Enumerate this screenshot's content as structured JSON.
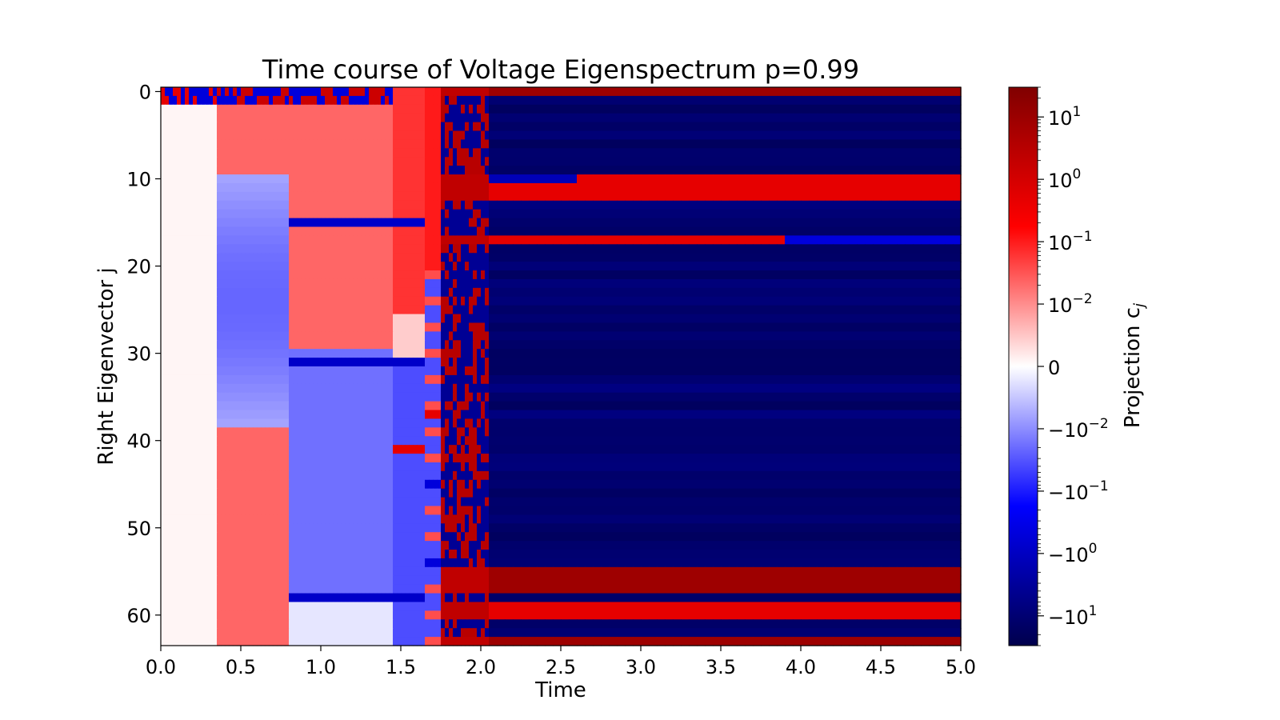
{
  "chart_data": {
    "type": "heatmap",
    "title": "Time course of Voltage Eigenspectrum p=0.99",
    "xlabel": "Time",
    "ylabel": "Right Eigenvector j",
    "xlim": [
      0.0,
      5.0
    ],
    "ylim": [
      63.5,
      -0.5
    ],
    "x_ticks": [
      "0.0",
      "0.5",
      "1.0",
      "1.5",
      "2.0",
      "2.5",
      "3.0",
      "3.5",
      "4.0",
      "4.5",
      "5.0"
    ],
    "y_ticks": [
      "0",
      "10",
      "20",
      "30",
      "40",
      "50",
      "60"
    ],
    "colormap": "seismic",
    "colors": {
      "neg_max": "#00004c",
      "neg_mid": "#0000ff",
      "zero": "#ffffff",
      "pos_mid": "#ff0000",
      "pos_max": "#800000"
    },
    "colorbar": {
      "label": "Projection c",
      "label_subscript": "j",
      "scale": "symlog",
      "range": [
        -30,
        30
      ],
      "ticks": [
        {
          "base": "10",
          "exp": "1",
          "value": 10
        },
        {
          "base": "10",
          "exp": "0",
          "value": 1
        },
        {
          "base": "10",
          "exp": "−1",
          "value": 0.1
        },
        {
          "base": "10",
          "exp": "−2",
          "value": 0.01
        },
        {
          "base": "0",
          "exp": "",
          "value": 0
        },
        {
          "base": "−10",
          "exp": "−2",
          "value": -0.01
        },
        {
          "base": "−10",
          "exp": "−1",
          "value": -0.1
        },
        {
          "base": "−10",
          "exp": "0",
          "value": -1
        },
        {
          "base": "−10",
          "exp": "1",
          "value": -10
        }
      ]
    },
    "phases": [
      {
        "t0": 0.0,
        "t1": 0.34,
        "note": "near zero, slightly positive"
      },
      {
        "t0": 0.34,
        "t1": 0.79,
        "note": "positive near 0 and ~40-64, negative ~10-37"
      },
      {
        "t0": 0.79,
        "t1": 1.46,
        "note": "positive 2-30, negative 31-57, near zero 58-63"
      },
      {
        "t0": 1.46,
        "t1": 1.65,
        "note": "positive ~0.1 above 30, negative below"
      },
      {
        "t0": 1.65,
        "t1": 1.75,
        "note": "transition"
      },
      {
        "t0": 1.75,
        "t1": 2.05,
        "note": "noisy mixed signs"
      },
      {
        "t0": 2.05,
        "t1": 5.0,
        "note": "mostly strongly negative; positive rows 0,10,11,12,17,55-57,59-60,63"
      }
    ],
    "strong_negative_rows_early": [
      15,
      31,
      58
    ],
    "positive_rows_late": [
      0,
      10,
      11,
      12,
      17,
      55,
      56,
      57,
      59,
      60,
      63
    ]
  }
}
